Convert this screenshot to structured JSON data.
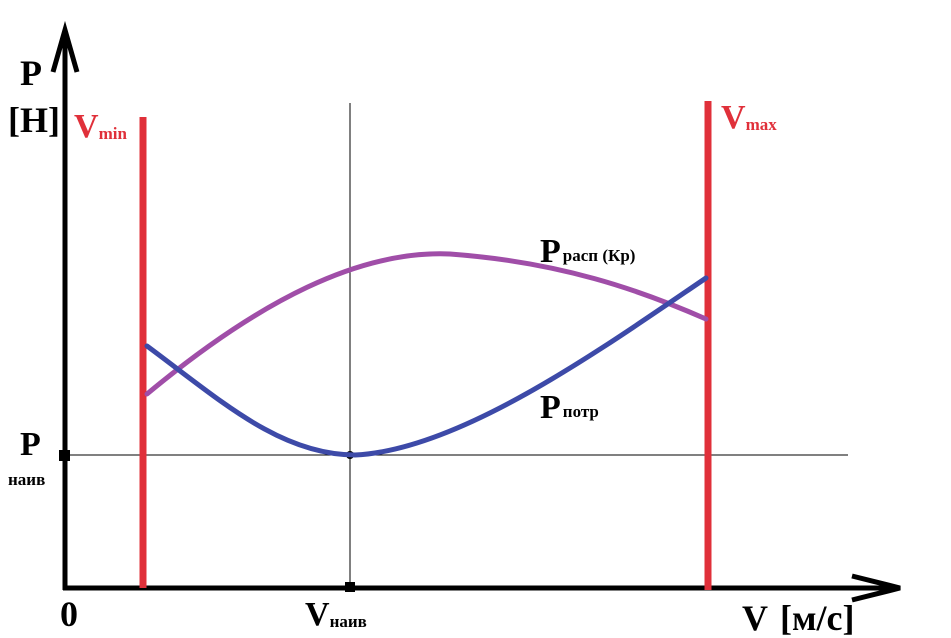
{
  "axes": {
    "y_symbol": "P",
    "y_unit": "[Н]",
    "x_symbol": "V",
    "x_unit": "[м/с]",
    "origin": "0"
  },
  "markers": {
    "p_main": "P",
    "p_sub": "наив",
    "v_main": "V",
    "v_sub": "наив"
  },
  "limits": {
    "vmin_main": "V",
    "vmin_sub": "min",
    "vmax_main": "V",
    "vmax_sub": "max",
    "color": "#e0303a"
  },
  "curves": {
    "available": {
      "main": "P",
      "sub": "расп (Кр)",
      "color": "#a04ea8"
    },
    "required": {
      "main": "P",
      "sub": "потр",
      "color": "#3d4aa8"
    }
  }
}
